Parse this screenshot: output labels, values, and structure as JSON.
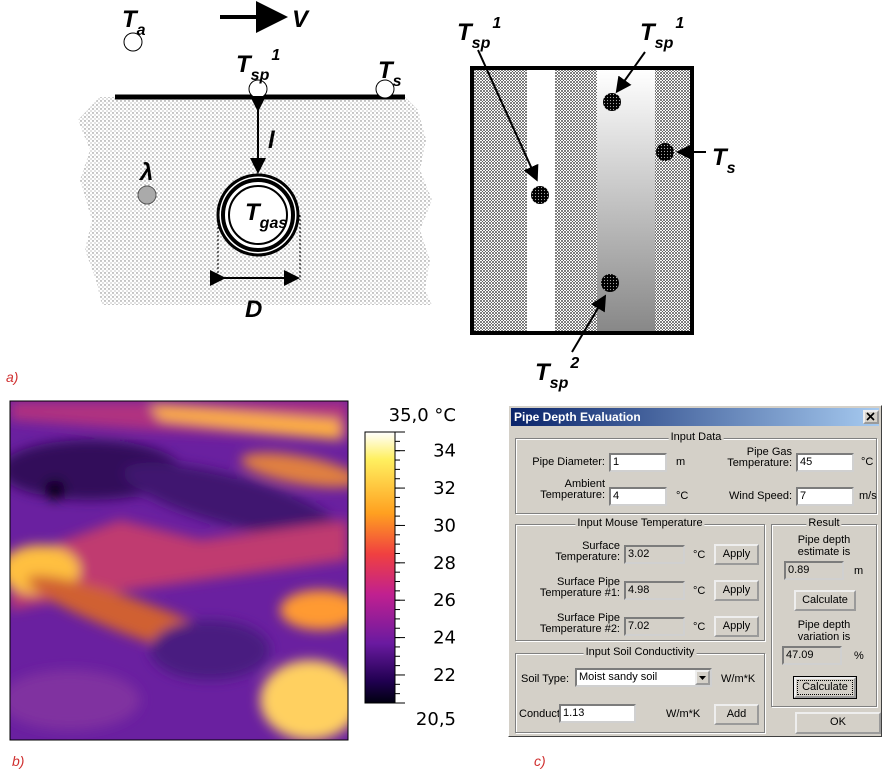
{
  "panel_a": {
    "caption": "a)",
    "labels": {
      "ambient": {
        "main": "T",
        "sub": "a"
      },
      "velocity": "V",
      "surface_pipe_left": {
        "main": "T",
        "sub": "sp",
        "sup": "1"
      },
      "surface_left": {
        "main": "T",
        "sub": "s"
      },
      "depth": "l",
      "conductivity": "λ",
      "gas": {
        "main": "T",
        "sub": "gas"
      },
      "diameter": "D",
      "surface_pipe_1a": {
        "main": "T",
        "sub": "sp",
        "sup": "1"
      },
      "surface_pipe_1b": {
        "main": "T",
        "sub": "sp",
        "sup": "1"
      },
      "surface_right": {
        "main": "T",
        "sub": "s"
      },
      "surface_pipe_2": {
        "main": "T",
        "sub": "sp",
        "sup": "2"
      }
    }
  },
  "panel_b": {
    "caption": "b)",
    "colorbar": {
      "lim": [
        20.5,
        35
      ],
      "ticks": [
        {
          "value": 35,
          "label": "35,0 °C"
        },
        34,
        32,
        30,
        28,
        26,
        24,
        22,
        {
          "value": 20.5,
          "label": "20,5"
        }
      ]
    }
  },
  "panel_c": {
    "caption": "c)",
    "dialog": {
      "title": "Pipe Depth Evaluation",
      "input_data": {
        "title": "Input Data",
        "pipe_diameter": {
          "label": "Pipe Diameter:",
          "value": 1,
          "unit": "m"
        },
        "pipe_gas_temperature": {
          "label": "Pipe Gas Temperature:",
          "value": 45,
          "unit": "°C"
        },
        "ambient_temperature": {
          "label": "Ambient Temperature:",
          "value": 4,
          "unit": "°C"
        },
        "wind_speed": {
          "label": "Wind Speed:",
          "value": 7,
          "unit": "m/s"
        }
      },
      "mouse": {
        "title": "Input Mouse Temperature",
        "rows": [
          {
            "label": "Surface Temperature:",
            "value": 3.02,
            "unit": "°C",
            "button": "Apply"
          },
          {
            "label": "Surface Pipe Temperature #1:",
            "value": 4.98,
            "unit": "°C",
            "button": "Apply"
          },
          {
            "label": "Surface Pipe Temperature #2:",
            "value": 7.02,
            "unit": "°C",
            "button": "Apply"
          }
        ]
      },
      "soil": {
        "title": "Input Soil Conductivity",
        "soil_type": {
          "label": "Soil Type:",
          "value": "Moist sandy soil",
          "unit": "W/m*K"
        },
        "conductivity": {
          "label": "Conductivity:",
          "value": 1.13,
          "unit": "W/m*K",
          "button": "Add"
        }
      },
      "result": {
        "title": "Result",
        "depth": {
          "label": "Pipe depth estimate is",
          "value": 0.89,
          "unit": "m",
          "button": "Calculate"
        },
        "variation": {
          "label": "Pipe depth variation is",
          "value": 47.09,
          "unit": "%",
          "button": "Calculate"
        }
      },
      "ok": "OK"
    }
  }
}
